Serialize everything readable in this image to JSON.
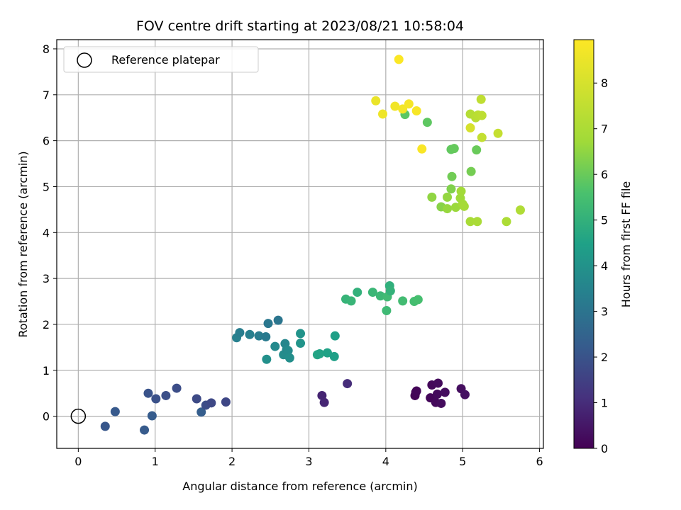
{
  "chart_data": {
    "type": "scatter",
    "title": "FOV centre drift starting at 2023/08/21 10:58:04",
    "xlabel": "Angular distance from reference (arcmin)",
    "ylabel": "Rotation from reference (arcmin)",
    "xlim": [
      -0.28,
      6.05
    ],
    "ylim": [
      -0.7,
      8.2
    ],
    "xticks": [
      0,
      1,
      2,
      3,
      4,
      5,
      6
    ],
    "yticks": [
      0,
      1,
      2,
      3,
      4,
      5,
      6,
      7,
      8
    ],
    "grid": true,
    "legend": {
      "position": "top-left",
      "entries": [
        "Reference platepar"
      ]
    },
    "reference_point": {
      "x": 0,
      "y": 0,
      "label": "Reference platepar"
    },
    "colorbar": {
      "label": "Hours from first FF file",
      "colormap": "viridis",
      "range": [
        0,
        8.95
      ],
      "ticks": [
        0,
        1,
        2,
        3,
        4,
        5,
        6,
        7,
        8
      ]
    },
    "points": [
      {
        "x": 4.38,
        "y": 0.45,
        "c": 0.05
      },
      {
        "x": 4.39,
        "y": 0.52,
        "c": 0.08
      },
      {
        "x": 4.4,
        "y": 0.55,
        "c": 0.1
      },
      {
        "x": 4.58,
        "y": 0.4,
        "c": 0.12
      },
      {
        "x": 4.6,
        "y": 0.68,
        "c": 0.15
      },
      {
        "x": 4.65,
        "y": 0.3,
        "c": 0.18
      },
      {
        "x": 4.67,
        "y": 0.48,
        "c": 0.2
      },
      {
        "x": 4.68,
        "y": 0.72,
        "c": 0.22
      },
      {
        "x": 4.72,
        "y": 0.28,
        "c": 0.25
      },
      {
        "x": 4.77,
        "y": 0.52,
        "c": 0.28
      },
      {
        "x": 4.98,
        "y": 0.6,
        "c": 0.3
      },
      {
        "x": 5.03,
        "y": 0.47,
        "c": 0.35
      },
      {
        "x": 3.17,
        "y": 0.45,
        "c": 0.8
      },
      {
        "x": 3.2,
        "y": 0.3,
        "c": 0.85
      },
      {
        "x": 3.5,
        "y": 0.71,
        "c": 1.0
      },
      {
        "x": 0.35,
        "y": -0.22,
        "c": 2.1
      },
      {
        "x": 0.48,
        "y": 0.1,
        "c": 2.15
      },
      {
        "x": 0.86,
        "y": -0.3,
        "c": 2.2
      },
      {
        "x": 0.91,
        "y": 0.5,
        "c": 2.0
      },
      {
        "x": 0.96,
        "y": 0.01,
        "c": 2.25
      },
      {
        "x": 1.01,
        "y": 0.38,
        "c": 1.95
      },
      {
        "x": 1.14,
        "y": 0.45,
        "c": 1.9
      },
      {
        "x": 1.28,
        "y": 0.61,
        "c": 1.85
      },
      {
        "x": 1.54,
        "y": 0.38,
        "c": 1.75
      },
      {
        "x": 1.6,
        "y": 0.09,
        "c": 2.3
      },
      {
        "x": 1.66,
        "y": 0.24,
        "c": 1.8
      },
      {
        "x": 1.73,
        "y": 0.29,
        "c": 1.7
      },
      {
        "x": 1.92,
        "y": 0.31,
        "c": 1.65
      },
      {
        "x": 2.06,
        "y": 1.71,
        "c": 3.4
      },
      {
        "x": 2.1,
        "y": 1.82,
        "c": 3.3
      },
      {
        "x": 2.23,
        "y": 1.78,
        "c": 3.35
      },
      {
        "x": 2.35,
        "y": 1.75,
        "c": 3.25
      },
      {
        "x": 2.44,
        "y": 1.73,
        "c": 3.2
      },
      {
        "x": 2.45,
        "y": 1.24,
        "c": 3.9
      },
      {
        "x": 2.47,
        "y": 2.02,
        "c": 3.1
      },
      {
        "x": 2.56,
        "y": 1.52,
        "c": 3.7
      },
      {
        "x": 2.6,
        "y": 2.09,
        "c": 3.05
      },
      {
        "x": 2.67,
        "y": 1.34,
        "c": 3.8
      },
      {
        "x": 2.69,
        "y": 1.58,
        "c": 3.6
      },
      {
        "x": 2.71,
        "y": 1.45,
        "c": 3.65
      },
      {
        "x": 2.73,
        "y": 1.43,
        "c": 3.75
      },
      {
        "x": 2.75,
        "y": 1.27,
        "c": 3.85
      },
      {
        "x": 2.89,
        "y": 1.8,
        "c": 4.0
      },
      {
        "x": 2.89,
        "y": 1.59,
        "c": 4.05
      },
      {
        "x": 3.11,
        "y": 1.34,
        "c": 4.6
      },
      {
        "x": 3.14,
        "y": 1.36,
        "c": 4.55
      },
      {
        "x": 3.24,
        "y": 1.38,
        "c": 4.5
      },
      {
        "x": 3.33,
        "y": 1.3,
        "c": 4.45
      },
      {
        "x": 3.34,
        "y": 1.75,
        "c": 4.4
      },
      {
        "x": 3.48,
        "y": 2.55,
        "c": 5.1
      },
      {
        "x": 3.55,
        "y": 2.51,
        "c": 5.15
      },
      {
        "x": 3.63,
        "y": 2.7,
        "c": 5.0
      },
      {
        "x": 3.83,
        "y": 2.7,
        "c": 5.2
      },
      {
        "x": 3.93,
        "y": 2.62,
        "c": 5.25
      },
      {
        "x": 4.01,
        "y": 2.3,
        "c": 5.3
      },
      {
        "x": 4.02,
        "y": 2.6,
        "c": 5.35
      },
      {
        "x": 4.05,
        "y": 2.84,
        "c": 4.95
      },
      {
        "x": 4.06,
        "y": 2.73,
        "c": 5.05
      },
      {
        "x": 4.22,
        "y": 2.51,
        "c": 5.4
      },
      {
        "x": 4.37,
        "y": 2.5,
        "c": 5.45
      },
      {
        "x": 4.42,
        "y": 2.54,
        "c": 5.5
      },
      {
        "x": 4.25,
        "y": 6.57,
        "c": 5.8
      },
      {
        "x": 4.54,
        "y": 6.4,
        "c": 5.85
      },
      {
        "x": 4.85,
        "y": 5.81,
        "c": 5.9
      },
      {
        "x": 4.89,
        "y": 5.83,
        "c": 5.95
      },
      {
        "x": 5.18,
        "y": 5.8,
        "c": 6.0
      },
      {
        "x": 4.86,
        "y": 5.22,
        "c": 6.1
      },
      {
        "x": 5.11,
        "y": 5.33,
        "c": 6.15
      },
      {
        "x": 4.85,
        "y": 4.95,
        "c": 6.3
      },
      {
        "x": 4.72,
        "y": 4.56,
        "c": 6.4
      },
      {
        "x": 4.6,
        "y": 4.77,
        "c": 6.5
      },
      {
        "x": 4.8,
        "y": 4.77,
        "c": 6.55
      },
      {
        "x": 4.8,
        "y": 4.52,
        "c": 6.6
      },
      {
        "x": 4.91,
        "y": 4.55,
        "c": 6.65
      },
      {
        "x": 4.97,
        "y": 4.75,
        "c": 6.7
      },
      {
        "x": 4.98,
        "y": 4.9,
        "c": 6.75
      },
      {
        "x": 5.0,
        "y": 4.62,
        "c": 6.8
      },
      {
        "x": 5.02,
        "y": 4.57,
        "c": 6.85
      },
      {
        "x": 5.1,
        "y": 4.24,
        "c": 6.9
      },
      {
        "x": 5.19,
        "y": 4.24,
        "c": 6.95
      },
      {
        "x": 5.57,
        "y": 4.24,
        "c": 7.0
      },
      {
        "x": 5.75,
        "y": 4.49,
        "c": 7.1
      },
      {
        "x": 5.1,
        "y": 6.58,
        "c": 7.2
      },
      {
        "x": 5.17,
        "y": 6.5,
        "c": 7.3
      },
      {
        "x": 5.2,
        "y": 6.56,
        "c": 7.35
      },
      {
        "x": 5.25,
        "y": 6.55,
        "c": 7.4
      },
      {
        "x": 5.24,
        "y": 6.9,
        "c": 7.45
      },
      {
        "x": 5.25,
        "y": 6.07,
        "c": 7.55
      },
      {
        "x": 5.46,
        "y": 6.16,
        "c": 7.6
      },
      {
        "x": 5.1,
        "y": 6.28,
        "c": 8.0
      },
      {
        "x": 3.87,
        "y": 6.87,
        "c": 8.5
      },
      {
        "x": 3.96,
        "y": 6.58,
        "c": 8.6
      },
      {
        "x": 4.12,
        "y": 6.75,
        "c": 8.65
      },
      {
        "x": 4.17,
        "y": 7.77,
        "c": 8.9
      },
      {
        "x": 4.22,
        "y": 6.69,
        "c": 8.7
      },
      {
        "x": 4.3,
        "y": 6.8,
        "c": 8.75
      },
      {
        "x": 4.4,
        "y": 6.65,
        "c": 8.8
      },
      {
        "x": 4.47,
        "y": 5.82,
        "c": 8.85
      }
    ]
  }
}
